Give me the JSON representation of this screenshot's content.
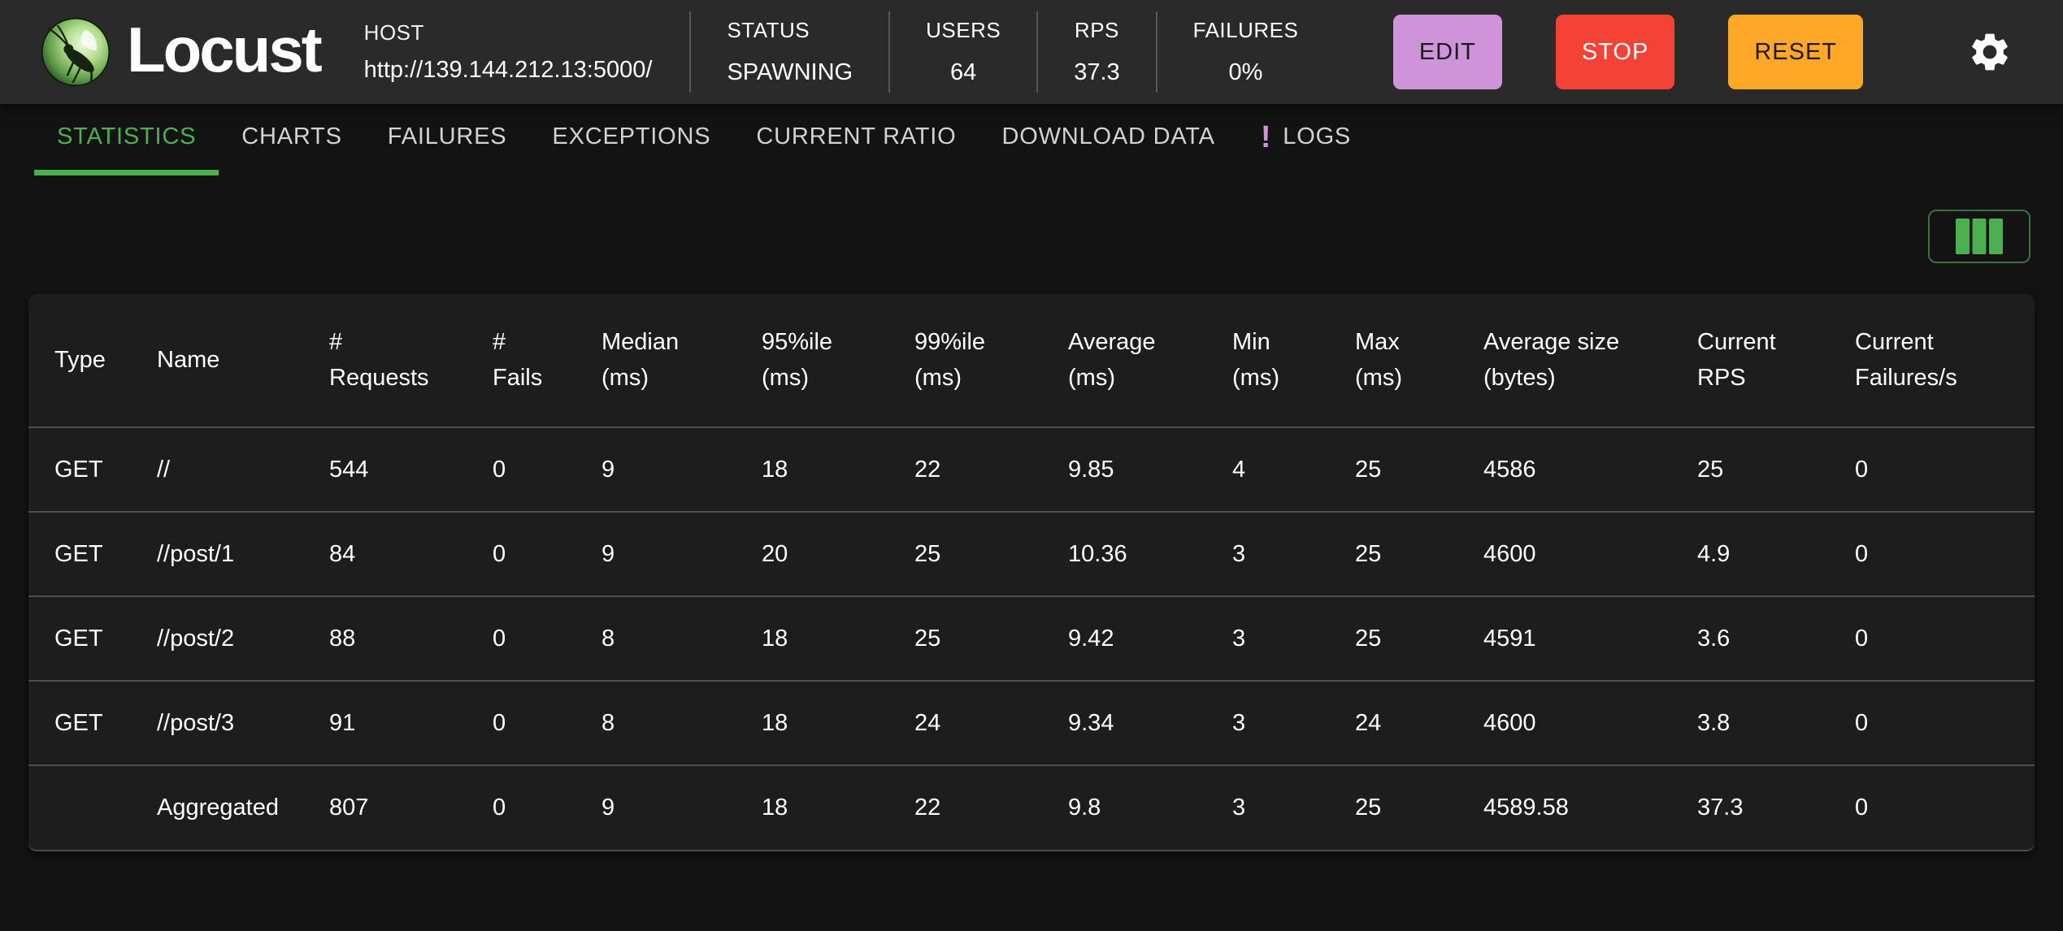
{
  "header": {
    "app_name": "Locust",
    "host_label": "HOST",
    "host_url": "http://139.144.212.13:5000/",
    "stats": [
      {
        "label": "STATUS",
        "value": "SPAWNING"
      },
      {
        "label": "USERS",
        "value": "64"
      },
      {
        "label": "RPS",
        "value": "37.3"
      },
      {
        "label": "FAILURES",
        "value": "0%"
      }
    ],
    "buttons": {
      "edit": "EDIT",
      "stop": "STOP",
      "reset": "RESET"
    }
  },
  "tabs": [
    {
      "label": "STATISTICS",
      "active": true
    },
    {
      "label": "CHARTS",
      "active": false
    },
    {
      "label": "FAILURES",
      "active": false
    },
    {
      "label": "EXCEPTIONS",
      "active": false
    },
    {
      "label": "CURRENT RATIO",
      "active": false
    },
    {
      "label": "DOWNLOAD DATA",
      "active": false
    },
    {
      "label": "LOGS",
      "active": false,
      "badge": "!"
    }
  ],
  "table": {
    "columns": [
      [
        "Type",
        ""
      ],
      [
        "Name",
        ""
      ],
      [
        "#",
        "Requests"
      ],
      [
        "#",
        "Fails"
      ],
      [
        "Median",
        "(ms)"
      ],
      [
        "95%ile",
        "(ms)"
      ],
      [
        "99%ile",
        "(ms)"
      ],
      [
        "Average",
        "(ms)"
      ],
      [
        "Min",
        "(ms)"
      ],
      [
        "Max",
        "(ms)"
      ],
      [
        "Average size",
        "(bytes)"
      ],
      [
        "Current",
        "RPS"
      ],
      [
        "Current",
        "Failures/s"
      ]
    ],
    "rows": [
      [
        "GET",
        "//",
        "544",
        "0",
        "9",
        "18",
        "22",
        "9.85",
        "4",
        "25",
        "4586",
        "25",
        "0"
      ],
      [
        "GET",
        "//post/1",
        "84",
        "0",
        "9",
        "20",
        "25",
        "10.36",
        "3",
        "25",
        "4600",
        "4.9",
        "0"
      ],
      [
        "GET",
        "//post/2",
        "88",
        "0",
        "8",
        "18",
        "25",
        "9.42",
        "3",
        "25",
        "4591",
        "3.6",
        "0"
      ],
      [
        "GET",
        "//post/3",
        "91",
        "0",
        "8",
        "18",
        "24",
        "9.34",
        "3",
        "24",
        "4600",
        "3.8",
        "0"
      ],
      [
        "",
        "Aggregated",
        "807",
        "0",
        "9",
        "18",
        "22",
        "9.8",
        "3",
        "25",
        "4589.58",
        "37.3",
        "0"
      ]
    ]
  },
  "colors": {
    "accent_green": "#4caf50",
    "secondary_purple": "#ce93d8",
    "error_red": "#f44336",
    "warning_orange": "#ffa726"
  }
}
